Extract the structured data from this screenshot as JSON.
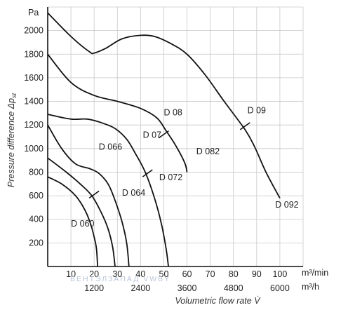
{
  "chart_data": {
    "type": "line",
    "ylabel": "Pressure difference Δp",
    "ylabel_subscript": "st",
    "y_unit": "Pa",
    "xlabel": "Volumetric flow rate V̇",
    "x_unit_primary": "m³/min",
    "x_unit_secondary": "m³/h",
    "xlim": [
      0,
      110
    ],
    "ylim": [
      0,
      2200
    ],
    "yticks": [
      200,
      400,
      600,
      800,
      1000,
      1200,
      1400,
      1600,
      1800,
      2000
    ],
    "xticks": [
      10,
      20,
      30,
      40,
      50,
      60,
      70,
      80,
      90,
      100
    ],
    "xticks_secondary": [
      {
        "value": 20,
        "label": "1200"
      },
      {
        "value": 40,
        "label": "2400"
      },
      {
        "value": 60,
        "label": "3600"
      },
      {
        "value": 80,
        "label": "4800"
      },
      {
        "value": 100,
        "label": "6000"
      }
    ],
    "grid": true,
    "series": [
      {
        "name": "D 060",
        "label_at": [
          10,
          340
        ],
        "points": [
          [
            0,
            760
          ],
          [
            6,
            700
          ],
          [
            12,
            600
          ],
          [
            16,
            480
          ],
          [
            18.5,
            360
          ],
          [
            20,
            250
          ],
          [
            21,
            150
          ],
          [
            21.5,
            0
          ]
        ]
      },
      {
        "name": "D 064",
        "label_at": [
          32,
          600
        ],
        "points": [
          [
            0,
            920
          ],
          [
            8,
            800
          ],
          [
            14,
            700
          ],
          [
            19,
            600
          ],
          [
            23,
            460
          ],
          [
            26,
            320
          ],
          [
            28,
            160
          ],
          [
            29,
            0
          ]
        ]
      },
      {
        "name": "D 066",
        "label_at": [
          22,
          990
        ],
        "points": [
          [
            0,
            1200
          ],
          [
            6,
            1000
          ],
          [
            12,
            870
          ],
          [
            18,
            830
          ],
          [
            22,
            790
          ],
          [
            26,
            700
          ],
          [
            29,
            560
          ],
          [
            32,
            380
          ],
          [
            34,
            200
          ],
          [
            35,
            0
          ]
        ]
      },
      {
        "name": "D 07",
        "label_at": [
          41,
          1090
        ],
        "points": [
          [
            0,
            1290
          ],
          [
            10,
            1250
          ],
          [
            17,
            1250
          ],
          [
            23,
            1220
          ],
          [
            29,
            1170
          ],
          [
            34,
            1080
          ],
          [
            38,
            950
          ],
          [
            42,
            800
          ],
          [
            46,
            580
          ],
          [
            49,
            360
          ],
          [
            51,
            150
          ],
          [
            52,
            0
          ]
        ]
      },
      {
        "name": "D 072",
        "label_at": [
          48,
          730
        ],
        "points": []
      },
      {
        "name": "D 08",
        "label_at": [
          50,
          1280
        ],
        "points": [
          [
            0,
            1800
          ],
          [
            10,
            1560
          ],
          [
            20,
            1450
          ],
          [
            30,
            1400
          ],
          [
            40,
            1340
          ],
          [
            47,
            1260
          ],
          [
            51,
            1150
          ],
          [
            55,
            1030
          ],
          [
            59,
            880
          ],
          [
            60,
            800
          ]
        ]
      },
      {
        "name": "D 082",
        "label_at": [
          64,
          950
        ],
        "points": []
      },
      {
        "name": "D 09",
        "label_at": [
          86,
          1300
        ],
        "points": [
          [
            0,
            2150
          ],
          [
            10,
            1950
          ],
          [
            18,
            1820
          ],
          [
            20,
            1810
          ],
          [
            25,
            1850
          ],
          [
            32,
            1930
          ],
          [
            40,
            1960
          ],
          [
            46,
            1950
          ],
          [
            53,
            1890
          ],
          [
            60,
            1800
          ],
          [
            68,
            1620
          ],
          [
            76,
            1400
          ],
          [
            85,
            1160
          ],
          [
            89,
            1020
          ],
          [
            94,
            800
          ],
          [
            100,
            580
          ]
        ]
      },
      {
        "name": "D 092",
        "label_at": [
          98,
          500
        ],
        "points": []
      }
    ],
    "markers": [
      {
        "x": 50,
        "y": 1120
      },
      {
        "x": 43,
        "y": 790
      },
      {
        "x": 20,
        "y": 610
      },
      {
        "x": 85,
        "y": 1190
      }
    ],
    "watermark": "ВЕНТЭЛЗАПАД VWBY"
  }
}
